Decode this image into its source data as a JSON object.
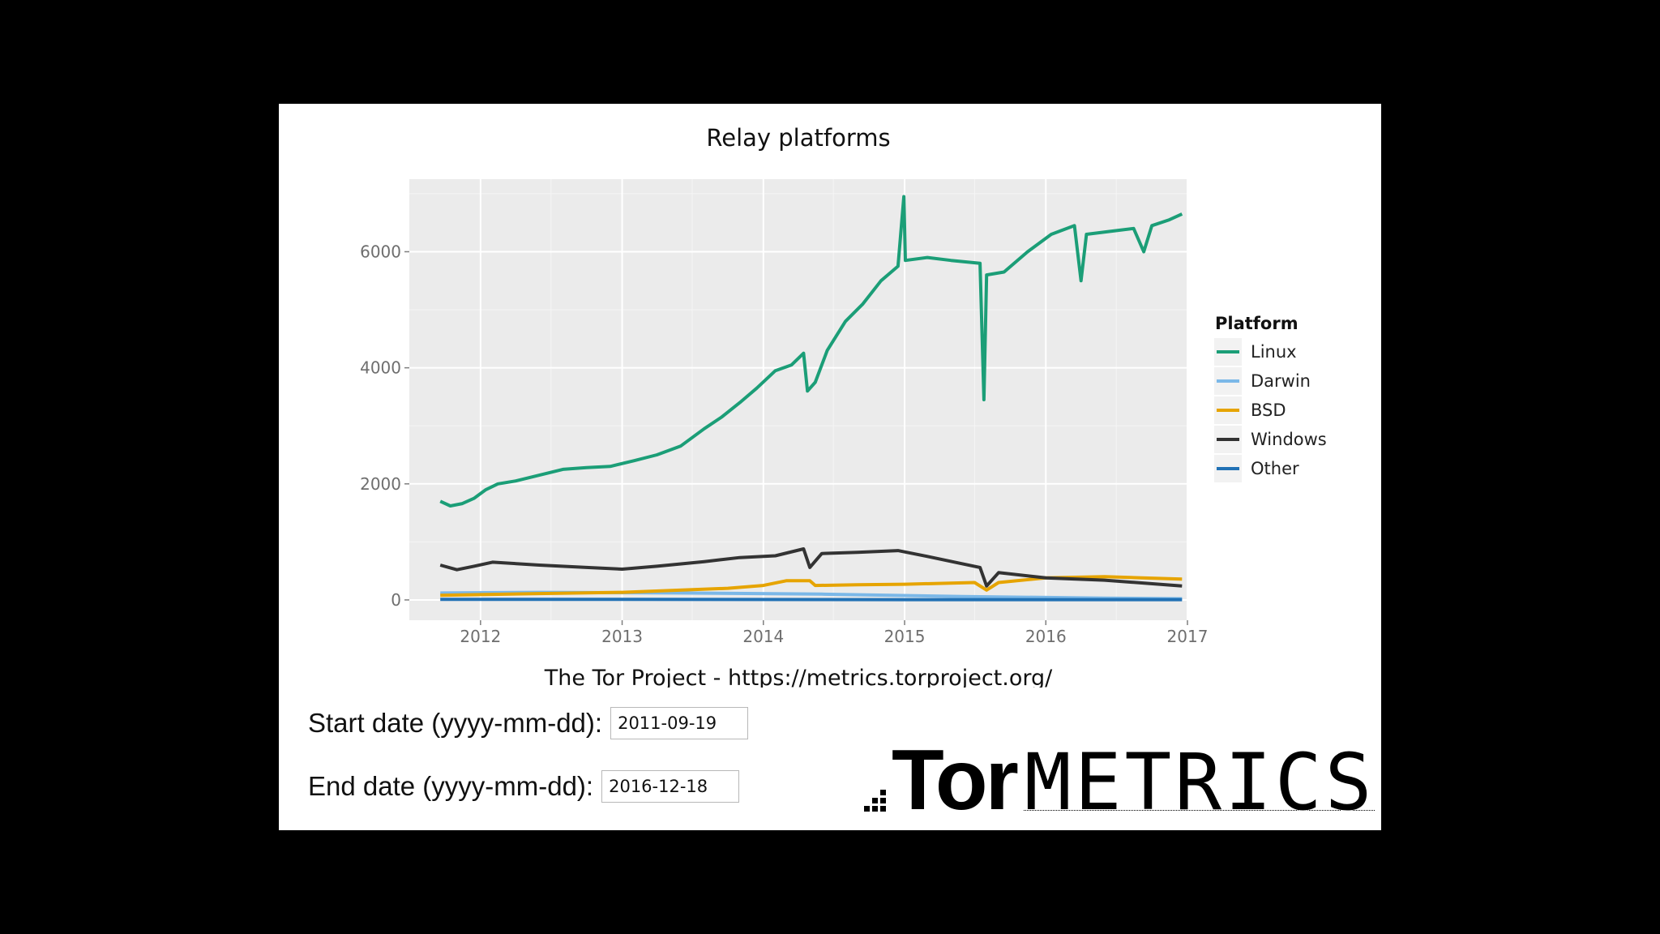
{
  "chart_data": {
    "type": "line",
    "title": "Relay platforms",
    "xlabel": "",
    "ylabel": "",
    "x_ticks": [
      "2012",
      "2013",
      "2014",
      "2015",
      "2016",
      "2017"
    ],
    "y_ticks": [
      "0",
      "2000",
      "4000",
      "6000"
    ],
    "ylim": [
      -350,
      7250
    ],
    "xlim": [
      "2011-07-01",
      "2017-01-01"
    ],
    "grid": true,
    "legend_title": "Platform",
    "legend_position": "right",
    "series": [
      {
        "name": "Linux",
        "color": "#1b9e77",
        "points": [
          [
            "2011-09-19",
            1700
          ],
          [
            "2011-10-15",
            1620
          ],
          [
            "2011-11-15",
            1660
          ],
          [
            "2011-12-15",
            1750
          ],
          [
            "2012-01-15",
            1900
          ],
          [
            "2012-02-15",
            2000
          ],
          [
            "2012-04-01",
            2050
          ],
          [
            "2012-06-01",
            2150
          ],
          [
            "2012-08-01",
            2250
          ],
          [
            "2012-10-01",
            2280
          ],
          [
            "2012-12-01",
            2300
          ],
          [
            "2013-02-01",
            2400
          ],
          [
            "2013-04-01",
            2500
          ],
          [
            "2013-06-01",
            2650
          ],
          [
            "2013-08-01",
            2950
          ],
          [
            "2013-09-15",
            3150
          ],
          [
            "2013-11-01",
            3400
          ],
          [
            "2013-12-15",
            3650
          ],
          [
            "2014-02-01",
            3950
          ],
          [
            "2014-03-15",
            4050
          ],
          [
            "2014-04-15",
            4250
          ],
          [
            "2014-04-25",
            3600
          ],
          [
            "2014-05-15",
            3750
          ],
          [
            "2014-06-15",
            4300
          ],
          [
            "2014-08-01",
            4800
          ],
          [
            "2014-09-15",
            5100
          ],
          [
            "2014-11-01",
            5500
          ],
          [
            "2014-12-15",
            5750
          ],
          [
            "2014-12-30",
            6950
          ],
          [
            "2015-01-03",
            5850
          ],
          [
            "2015-03-01",
            5900
          ],
          [
            "2015-05-01",
            5850
          ],
          [
            "2015-07-15",
            5800
          ],
          [
            "2015-07-25",
            3450
          ],
          [
            "2015-08-01",
            5600
          ],
          [
            "2015-09-15",
            5650
          ],
          [
            "2015-11-15",
            6000
          ],
          [
            "2016-01-15",
            6300
          ],
          [
            "2016-03-15",
            6450
          ],
          [
            "2016-04-01",
            5500
          ],
          [
            "2016-04-15",
            6300
          ],
          [
            "2016-06-15",
            6350
          ],
          [
            "2016-08-15",
            6400
          ],
          [
            "2016-09-10",
            6000
          ],
          [
            "2016-10-01",
            6450
          ],
          [
            "2016-11-15",
            6550
          ],
          [
            "2016-12-18",
            6650
          ]
        ]
      },
      {
        "name": "Darwin",
        "color": "#7bb8e8",
        "points": [
          [
            "2011-09-19",
            120
          ],
          [
            "2012-06-01",
            130
          ],
          [
            "2013-06-01",
            120
          ],
          [
            "2014-06-01",
            100
          ],
          [
            "2015-06-01",
            60
          ],
          [
            "2016-06-01",
            30
          ],
          [
            "2016-12-18",
            20
          ]
        ]
      },
      {
        "name": "BSD",
        "color": "#e6a400",
        "points": [
          [
            "2011-09-19",
            80
          ],
          [
            "2012-06-01",
            110
          ],
          [
            "2013-01-01",
            130
          ],
          [
            "2013-10-01",
            200
          ],
          [
            "2014-01-01",
            250
          ],
          [
            "2014-03-01",
            330
          ],
          [
            "2014-05-01",
            330
          ],
          [
            "2014-05-15",
            250
          ],
          [
            "2014-09-01",
            260
          ],
          [
            "2015-01-01",
            270
          ],
          [
            "2015-07-01",
            300
          ],
          [
            "2015-08-01",
            170
          ],
          [
            "2015-09-01",
            300
          ],
          [
            "2016-01-01",
            380
          ],
          [
            "2016-06-01",
            400
          ],
          [
            "2016-12-18",
            360
          ]
        ]
      },
      {
        "name": "Windows",
        "color": "#333333",
        "points": [
          [
            "2011-09-19",
            600
          ],
          [
            "2011-11-01",
            520
          ],
          [
            "2011-12-15",
            580
          ],
          [
            "2012-02-01",
            650
          ],
          [
            "2012-06-01",
            600
          ],
          [
            "2012-10-01",
            560
          ],
          [
            "2013-01-01",
            530
          ],
          [
            "2013-04-01",
            580
          ],
          [
            "2013-08-01",
            660
          ],
          [
            "2013-11-01",
            730
          ],
          [
            "2014-02-01",
            760
          ],
          [
            "2014-04-15",
            880
          ],
          [
            "2014-05-01",
            560
          ],
          [
            "2014-06-01",
            800
          ],
          [
            "2014-09-01",
            820
          ],
          [
            "2014-12-15",
            850
          ],
          [
            "2015-03-01",
            750
          ],
          [
            "2015-06-01",
            620
          ],
          [
            "2015-07-15",
            560
          ],
          [
            "2015-08-01",
            240
          ],
          [
            "2015-09-01",
            470
          ],
          [
            "2016-01-01",
            380
          ],
          [
            "2016-06-01",
            340
          ],
          [
            "2016-12-18",
            240
          ]
        ]
      },
      {
        "name": "Other",
        "color": "#2171b5",
        "points": [
          [
            "2011-09-19",
            10
          ],
          [
            "2013-01-01",
            10
          ],
          [
            "2015-01-01",
            5
          ],
          [
            "2016-12-18",
            5
          ]
        ]
      }
    ],
    "caption": "The Tor Project - https://metrics.torproject.org/"
  },
  "form": {
    "start_label": "Start date (yyyy-mm-dd):",
    "start_value": "2011-09-19",
    "end_label": "End date (yyyy-mm-dd):",
    "end_value": "2016-12-18"
  },
  "logo": {
    "tor": "Tor",
    "metrics": "METRICS"
  }
}
